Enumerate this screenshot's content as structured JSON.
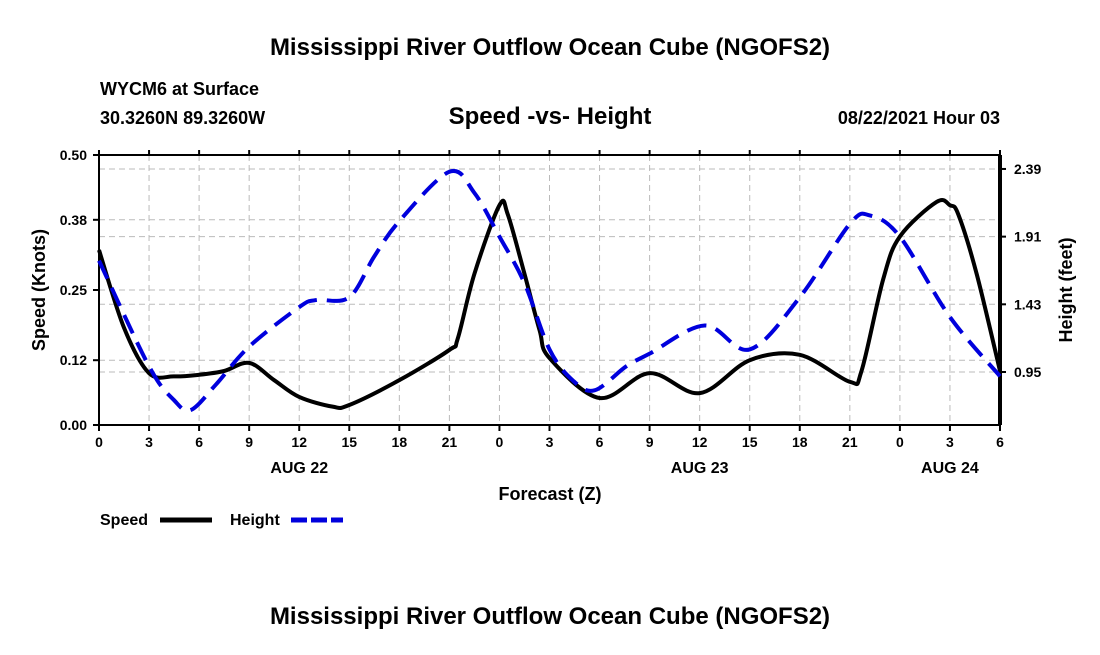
{
  "header": {
    "title": "Mississippi River Outflow Ocean Cube (NGOFS2)",
    "station": "WYCM6 at Surface",
    "coords": "30.3260N  89.3260W",
    "subtitle": "Speed -vs- Height",
    "datetime": "08/22/2021 Hour 03"
  },
  "footer": {
    "title": "Mississippi River Outflow Ocean Cube (NGOFS2)"
  },
  "chart_data": {
    "type": "line",
    "title": "Speed -vs- Height",
    "xlabel": "Forecast (Z)",
    "ylabel": "Speed (Knots)",
    "y2label": "Height (feet)",
    "xlim": [
      0,
      54
    ],
    "ylim": [
      0,
      0.5
    ],
    "y2lim": [
      0.574,
      2.489
    ],
    "grid": true,
    "x_ticks": [
      0,
      3,
      6,
      9,
      12,
      15,
      18,
      21,
      24,
      27,
      30,
      33,
      36,
      39,
      42,
      45,
      48,
      51,
      54
    ],
    "x_tick_labels": [
      "0",
      "3",
      "6",
      "9",
      "12",
      "15",
      "18",
      "21",
      "0",
      "3",
      "6",
      "9",
      "12",
      "15",
      "18",
      "21",
      "0",
      "3",
      "6"
    ],
    "date_labels": [
      {
        "hour": 12,
        "label": "AUG 22"
      },
      {
        "hour": 36,
        "label": "AUG 23"
      },
      {
        "hour": 51,
        "label": "AUG 24"
      }
    ],
    "y_ticks": [
      0.0,
      0.12,
      0.25,
      0.38,
      0.5
    ],
    "y_tick_labels": [
      "0.00",
      "0.12",
      "0.25",
      "0.38",
      "0.50"
    ],
    "y2_ticks": [
      0.95,
      1.43,
      1.91,
      2.39
    ],
    "y2_tick_labels": [
      "0.95",
      "1.43",
      "1.91",
      "2.39"
    ],
    "legend": {
      "placement": "bottom-left",
      "entries": [
        "Speed",
        "Height"
      ]
    },
    "series": [
      {
        "name": "Speed",
        "axis": "left",
        "color": "#000000",
        "dash": false,
        "x": [
          0,
          1.5,
          3,
          4.5,
          6,
          7.5,
          9,
          10.5,
          12,
          14,
          15,
          18,
          21,
          21.5,
          22.5,
          24,
          24.5,
          25.5,
          26.4,
          27,
          30,
          33,
          36,
          39,
          42,
          45,
          45.7,
          47,
          48,
          50.2,
          51,
          51.5,
          52.6,
          54
        ],
        "y": [
          0.324,
          0.18,
          0.096,
          0.09,
          0.093,
          0.1,
          0.115,
          0.083,
          0.052,
          0.034,
          0.037,
          0.083,
          0.139,
          0.16,
          0.28,
          0.407,
          0.39,
          0.28,
          0.176,
          0.124,
          0.05,
          0.096,
          0.059,
          0.12,
          0.13,
          0.08,
          0.1,
          0.27,
          0.349,
          0.413,
          0.407,
          0.39,
          0.28,
          0.1
        ]
      },
      {
        "name": "Height",
        "axis": "right",
        "color": "#0000dd",
        "dash": true,
        "x": [
          0,
          3,
          4.5,
          5.5,
          7,
          9,
          12,
          13,
          15,
          16.5,
          18,
          21,
          22.5,
          24,
          25.5,
          27,
          28.4,
          29.7,
          31.6,
          33,
          36.3,
          39,
          42,
          45,
          46.2,
          48,
          51,
          54
        ],
        "y": [
          1.74,
          0.99,
          0.75,
          0.68,
          0.86,
          1.13,
          1.41,
          1.46,
          1.48,
          1.77,
          2.02,
          2.37,
          2.22,
          1.91,
          1.58,
          1.11,
          0.89,
          0.82,
          0.99,
          1.08,
          1.28,
          1.11,
          1.48,
          2.0,
          2.06,
          1.91,
          1.34,
          0.92
        ]
      }
    ]
  }
}
